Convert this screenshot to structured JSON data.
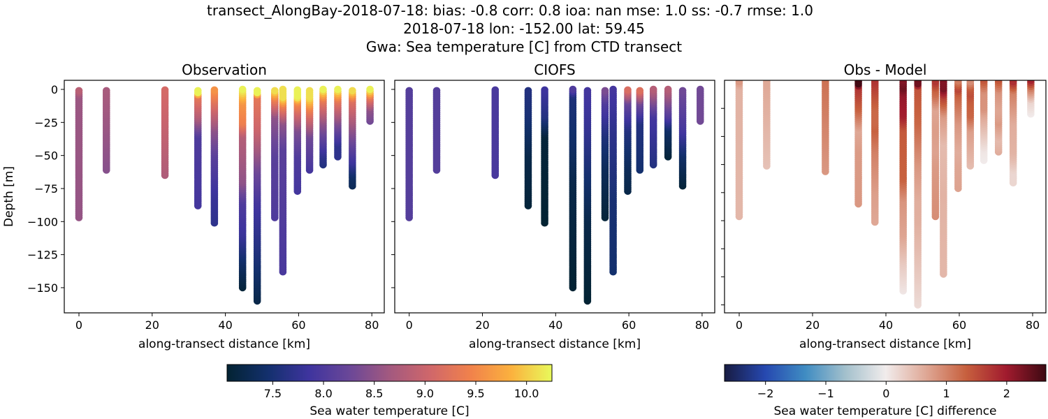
{
  "title_lines": [
    "transect_AlongBay-2018-07-18: bias: -0.8  corr: 0.8  ioa: nan  mse: 1.0  ss: -0.7  rmse: 1.0",
    "2018-07-18 lon: -152.00 lat: 59.45",
    "Gwa: Sea temperature [C] from CTD transect"
  ],
  "chart_data": [
    {
      "type": "scatter",
      "title": "Observation",
      "xlabel": "along-transect distance [km]",
      "ylabel": "Depth [m]",
      "xlim": [
        -4,
        83.5
      ],
      "ylim": [
        -169,
        7
      ],
      "xticks": [
        0,
        20,
        40,
        60,
        80
      ],
      "xticklabels": [
        "0",
        "20",
        "40",
        "60",
        "80"
      ],
      "yticks": [
        0,
        -25,
        -50,
        -75,
        -100,
        -125,
        -150
      ],
      "yticklabels": [
        "0",
        "−25",
        "−50",
        "−75",
        "−100",
        "−125",
        "−150"
      ],
      "color_field": "obs",
      "colormap": "thermal"
    },
    {
      "type": "scatter",
      "title": "CIOFS",
      "xlabel": "along-transect distance [km]",
      "xlim": [
        -4,
        83.5
      ],
      "ylim": [
        -169,
        7
      ],
      "xticks": [
        0,
        20,
        40,
        60,
        80
      ],
      "xticklabels": [
        "0",
        "20",
        "40",
        "60",
        "80"
      ],
      "yticks": [
        0,
        -25,
        -50,
        -75,
        -100,
        -125,
        -150
      ],
      "color_field": "model",
      "colormap": "thermal"
    },
    {
      "type": "scatter",
      "title": "Obs - Model",
      "xlabel": "along-transect distance [km]",
      "xlim": [
        -4,
        83.5
      ],
      "ylim": [
        -166,
        0
      ],
      "xticks": [
        0,
        20,
        40,
        60,
        80
      ],
      "xticklabels": [
        "0",
        "20",
        "40",
        "60",
        "80"
      ],
      "yticks": [
        -20,
        -40,
        -60,
        -80,
        -100,
        -120,
        -140,
        -160
      ],
      "color_field": "diff",
      "colormap": "balance"
    }
  ],
  "stations": [
    {
      "km": 0,
      "depth": 97,
      "obs": [
        [
          0,
          8.9
        ],
        [
          5,
          8.6
        ],
        [
          97,
          8.55
        ]
      ],
      "model": [
        [
          0,
          8.05
        ],
        [
          97,
          8.05
        ]
      ]
    },
    {
      "km": 7.5,
      "depth": 61,
      "obs": [
        [
          0,
          8.7
        ],
        [
          61,
          8.45
        ]
      ],
      "model": [
        [
          0,
          8.05
        ],
        [
          61,
          8.05
        ]
      ]
    },
    {
      "km": 23.5,
      "depth": 65,
      "obs": [
        [
          0,
          9.1
        ],
        [
          65,
          8.75
        ]
      ],
      "model": [
        [
          0,
          7.95
        ],
        [
          65,
          7.95
        ]
      ]
    },
    {
      "km": 32.5,
      "depth": 88,
      "obs": [
        [
          0,
          10.2
        ],
        [
          3,
          10.2
        ],
        [
          5,
          9.3
        ],
        [
          20,
          8.8
        ],
        [
          35,
          8.0
        ],
        [
          88,
          7.9
        ]
      ],
      "model": [
        [
          0,
          7.6
        ],
        [
          20,
          7.5
        ],
        [
          50,
          7.2
        ],
        [
          88,
          7.1
        ]
      ]
    },
    {
      "km": 37,
      "depth": 101,
      "obs": [
        [
          0,
          9.6
        ],
        [
          10,
          9.2
        ],
        [
          30,
          8.5
        ],
        [
          50,
          8.1
        ],
        [
          80,
          7.8
        ],
        [
          101,
          7.7
        ]
      ],
      "model": [
        [
          0,
          7.85
        ],
        [
          20,
          7.6
        ],
        [
          35,
          7.1
        ],
        [
          101,
          7.05
        ]
      ]
    },
    {
      "km": 44.7,
      "depth": 150,
      "obs": [
        [
          0,
          10.2
        ],
        [
          10,
          9.6
        ],
        [
          25,
          9.4
        ],
        [
          35,
          8.8
        ],
        [
          70,
          8.5
        ],
        [
          85,
          8.0
        ],
        [
          110,
          7.8
        ],
        [
          130,
          7.4
        ],
        [
          150,
          7.1
        ]
      ],
      "model": [
        [
          0,
          8.0
        ],
        [
          5,
          7.55
        ],
        [
          40,
          7.4
        ],
        [
          70,
          7.2
        ],
        [
          150,
          7.05
        ]
      ]
    },
    {
      "km": 48.7,
      "depth": 160,
      "obs": [
        [
          0,
          10.2
        ],
        [
          3,
          10.2
        ],
        [
          5,
          9.3
        ],
        [
          30,
          9.0
        ],
        [
          60,
          8.3
        ],
        [
          85,
          7.9
        ],
        [
          120,
          7.6
        ],
        [
          160,
          7.2
        ]
      ],
      "model": [
        [
          0,
          7.9
        ],
        [
          30,
          7.75
        ],
        [
          60,
          7.5
        ],
        [
          100,
          7.2
        ],
        [
          160,
          7.05
        ]
      ]
    },
    {
      "km": 53.5,
      "depth": 97,
      "obs": [
        [
          0,
          10.2
        ],
        [
          7,
          9.4
        ],
        [
          20,
          8.5
        ],
        [
          50,
          8.1
        ],
        [
          97,
          8.0
        ]
      ],
      "model": [
        [
          0,
          8.4
        ],
        [
          10,
          8.0
        ],
        [
          35,
          7.55
        ],
        [
          60,
          7.3
        ],
        [
          97,
          7.1
        ]
      ]
    },
    {
      "km": 55.7,
      "depth": 138,
      "obs": [
        [
          0,
          10.1
        ],
        [
          6,
          10.1
        ],
        [
          12,
          9.4
        ],
        [
          25,
          8.5
        ],
        [
          45,
          8.1
        ],
        [
          138,
          7.95
        ]
      ],
      "model": [
        [
          0,
          7.9
        ],
        [
          30,
          7.7
        ],
        [
          80,
          7.5
        ],
        [
          138,
          7.45
        ]
      ]
    },
    {
      "km": 59.7,
      "depth": 77,
      "obs": [
        [
          0,
          10.2
        ],
        [
          6,
          10.2
        ],
        [
          10,
          9.5
        ],
        [
          30,
          8.4
        ],
        [
          50,
          8.0
        ],
        [
          77,
          7.9
        ]
      ],
      "model": [
        [
          0,
          9.2
        ],
        [
          10,
          8.2
        ],
        [
          30,
          7.6
        ],
        [
          60,
          7.3
        ],
        [
          77,
          7.2
        ]
      ]
    },
    {
      "km": 63,
      "depth": 61,
      "obs": [
        [
          0,
          10.1
        ],
        [
          6,
          10.1
        ],
        [
          15,
          9.4
        ],
        [
          35,
          8.3
        ],
        [
          61,
          7.9
        ]
      ],
      "model": [
        [
          0,
          9.3
        ],
        [
          10,
          8.3
        ],
        [
          25,
          7.6
        ],
        [
          61,
          7.45
        ]
      ]
    },
    {
      "km": 66.7,
      "depth": 57,
      "obs": [
        [
          0,
          10.2
        ],
        [
          8,
          9.3
        ],
        [
          25,
          8.5
        ],
        [
          50,
          7.7
        ],
        [
          57,
          7.6
        ]
      ],
      "model": [
        [
          0,
          8.8
        ],
        [
          20,
          7.9
        ],
        [
          57,
          7.6
        ]
      ]
    },
    {
      "km": 70.7,
      "depth": 51,
      "obs": [
        [
          0,
          10.2
        ],
        [
          8,
          9.3
        ],
        [
          25,
          8.4
        ],
        [
          42,
          7.7
        ],
        [
          51,
          7.7
        ]
      ],
      "model": [
        [
          0,
          8.8
        ],
        [
          20,
          8.0
        ],
        [
          30,
          7.4
        ],
        [
          51,
          7.1
        ]
      ]
    },
    {
      "km": 74.7,
      "depth": 73,
      "obs": [
        [
          0,
          10.2
        ],
        [
          8,
          9.2
        ],
        [
          30,
          8.5
        ],
        [
          55,
          7.8
        ],
        [
          65,
          7.4
        ],
        [
          73,
          7.3
        ]
      ],
      "model": [
        [
          0,
          8.3
        ],
        [
          30,
          7.9
        ],
        [
          50,
          7.4
        ],
        [
          73,
          7.1
        ]
      ]
    },
    {
      "km": 79.5,
      "depth": 24,
      "obs": [
        [
          0,
          10.2
        ],
        [
          6,
          9.3
        ],
        [
          15,
          8.5
        ],
        [
          24,
          8.3
        ]
      ],
      "model": [
        [
          0,
          8.3
        ],
        [
          24,
          8.3
        ]
      ]
    }
  ],
  "colorbars": [
    {
      "label": "Sea water temperature [C]",
      "colormap": "thermal",
      "range": [
        7.05,
        10.25
      ],
      "ticks": [
        7.5,
        8.0,
        8.5,
        9.0,
        9.5,
        10.0
      ],
      "ticklabels": [
        "7.5",
        "8.0",
        "8.5",
        "9.0",
        "9.5",
        "10.0"
      ]
    },
    {
      "label": "Sea water temperature [C] difference",
      "colormap": "balance",
      "range": [
        -2.68,
        2.65
      ],
      "ticks": [
        -2,
        -1,
        0,
        1,
        2
      ],
      "ticklabels": [
        "−2",
        "−1",
        "0",
        "1",
        "2"
      ]
    }
  ],
  "colormaps": {
    "thermal": [
      "#032333",
      "#13306d",
      "#3e349e",
      "#6a4798",
      "#a3597f",
      "#d0676a",
      "#f1824b",
      "#fbb23e",
      "#e8fa5b"
    ],
    "balance": [
      "#181c43",
      "#2648b0",
      "#3f8cc2",
      "#a3c0cc",
      "#f1ecec",
      "#dfa896",
      "#c7603e",
      "#a11b2e",
      "#3c0912"
    ]
  }
}
